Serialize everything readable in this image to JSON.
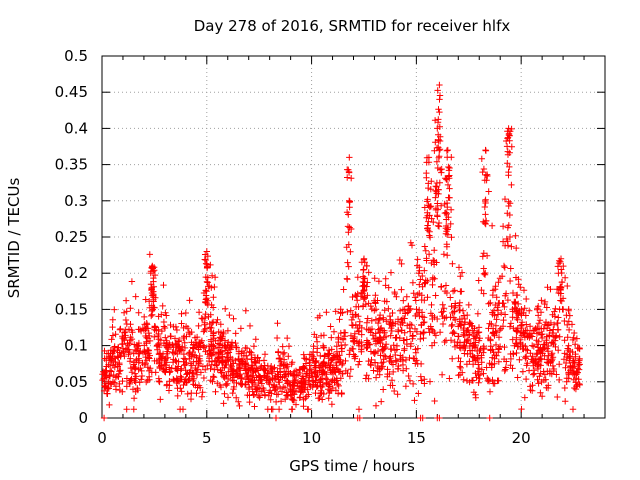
{
  "chart_data": {
    "type": "scatter",
    "title": "Day 278 of 2016, SRMTID for receiver hlfx",
    "xlabel": "GPS time / hours",
    "ylabel": "SRMTID / TECUs",
    "xlim": [
      0,
      24
    ],
    "ylim": [
      0,
      0.5
    ],
    "x_ticks": [
      "0",
      "5",
      "10",
      "15",
      "20"
    ],
    "y_ticks": [
      "0",
      "0.05",
      "0.1",
      "0.15",
      "0.2",
      "0.25",
      "0.3",
      "0.35",
      "0.4",
      "0.45",
      "0.5"
    ],
    "grid": true,
    "marker": "+",
    "series_color": "#ff0000",
    "series": [
      {
        "name": "SRMTID",
        "trend": [
          [
            0.0,
            0.04
          ],
          [
            0.5,
            0.07
          ],
          [
            1.0,
            0.09
          ],
          [
            1.5,
            0.08
          ],
          [
            2.0,
            0.09
          ],
          [
            2.5,
            0.1
          ],
          [
            3.0,
            0.08
          ],
          [
            3.5,
            0.08
          ],
          [
            4.0,
            0.08
          ],
          [
            4.5,
            0.08
          ],
          [
            5.0,
            0.11
          ],
          [
            5.5,
            0.09
          ],
          [
            6.0,
            0.08
          ],
          [
            6.5,
            0.065
          ],
          [
            7.0,
            0.06
          ],
          [
            7.5,
            0.055
          ],
          [
            8.0,
            0.05
          ],
          [
            8.5,
            0.06
          ],
          [
            9.0,
            0.05
          ],
          [
            9.5,
            0.04
          ],
          [
            10.0,
            0.06
          ],
          [
            10.5,
            0.065
          ],
          [
            11.0,
            0.07
          ],
          [
            11.5,
            0.09
          ],
          [
            12.0,
            0.11
          ],
          [
            12.5,
            0.12
          ],
          [
            13.0,
            0.11
          ],
          [
            13.5,
            0.1
          ],
          [
            14.0,
            0.11
          ],
          [
            14.5,
            0.12
          ],
          [
            15.0,
            0.12
          ],
          [
            15.5,
            0.14
          ],
          [
            16.0,
            0.16
          ],
          [
            16.5,
            0.14
          ],
          [
            17.0,
            0.12
          ],
          [
            17.5,
            0.1
          ],
          [
            18.0,
            0.09
          ],
          [
            18.5,
            0.1
          ],
          [
            19.0,
            0.13
          ],
          [
            19.5,
            0.15
          ],
          [
            20.0,
            0.11
          ],
          [
            20.5,
            0.09
          ],
          [
            21.0,
            0.09
          ],
          [
            21.5,
            0.1
          ],
          [
            22.0,
            0.11
          ],
          [
            22.5,
            0.08
          ],
          [
            22.8,
            0.06
          ]
        ],
        "peaks": [
          {
            "x": 2.4,
            "y": 0.21
          },
          {
            "x": 5.0,
            "y": 0.23
          },
          {
            "x": 11.8,
            "y": 0.36
          },
          {
            "x": 12.5,
            "y": 0.22
          },
          {
            "x": 15.6,
            "y": 0.36
          },
          {
            "x": 16.0,
            "y": 0.4
          },
          {
            "x": 16.1,
            "y": 0.46
          },
          {
            "x": 16.5,
            "y": 0.37
          },
          {
            "x": 18.3,
            "y": 0.37
          },
          {
            "x": 19.4,
            "y": 0.4
          },
          {
            "x": 21.9,
            "y": 0.22
          }
        ],
        "zero_markers": [
          0.1,
          8.3,
          12.2,
          12.3,
          15.2,
          15.3,
          16.0,
          16.1,
          18.5
        ]
      }
    ]
  }
}
